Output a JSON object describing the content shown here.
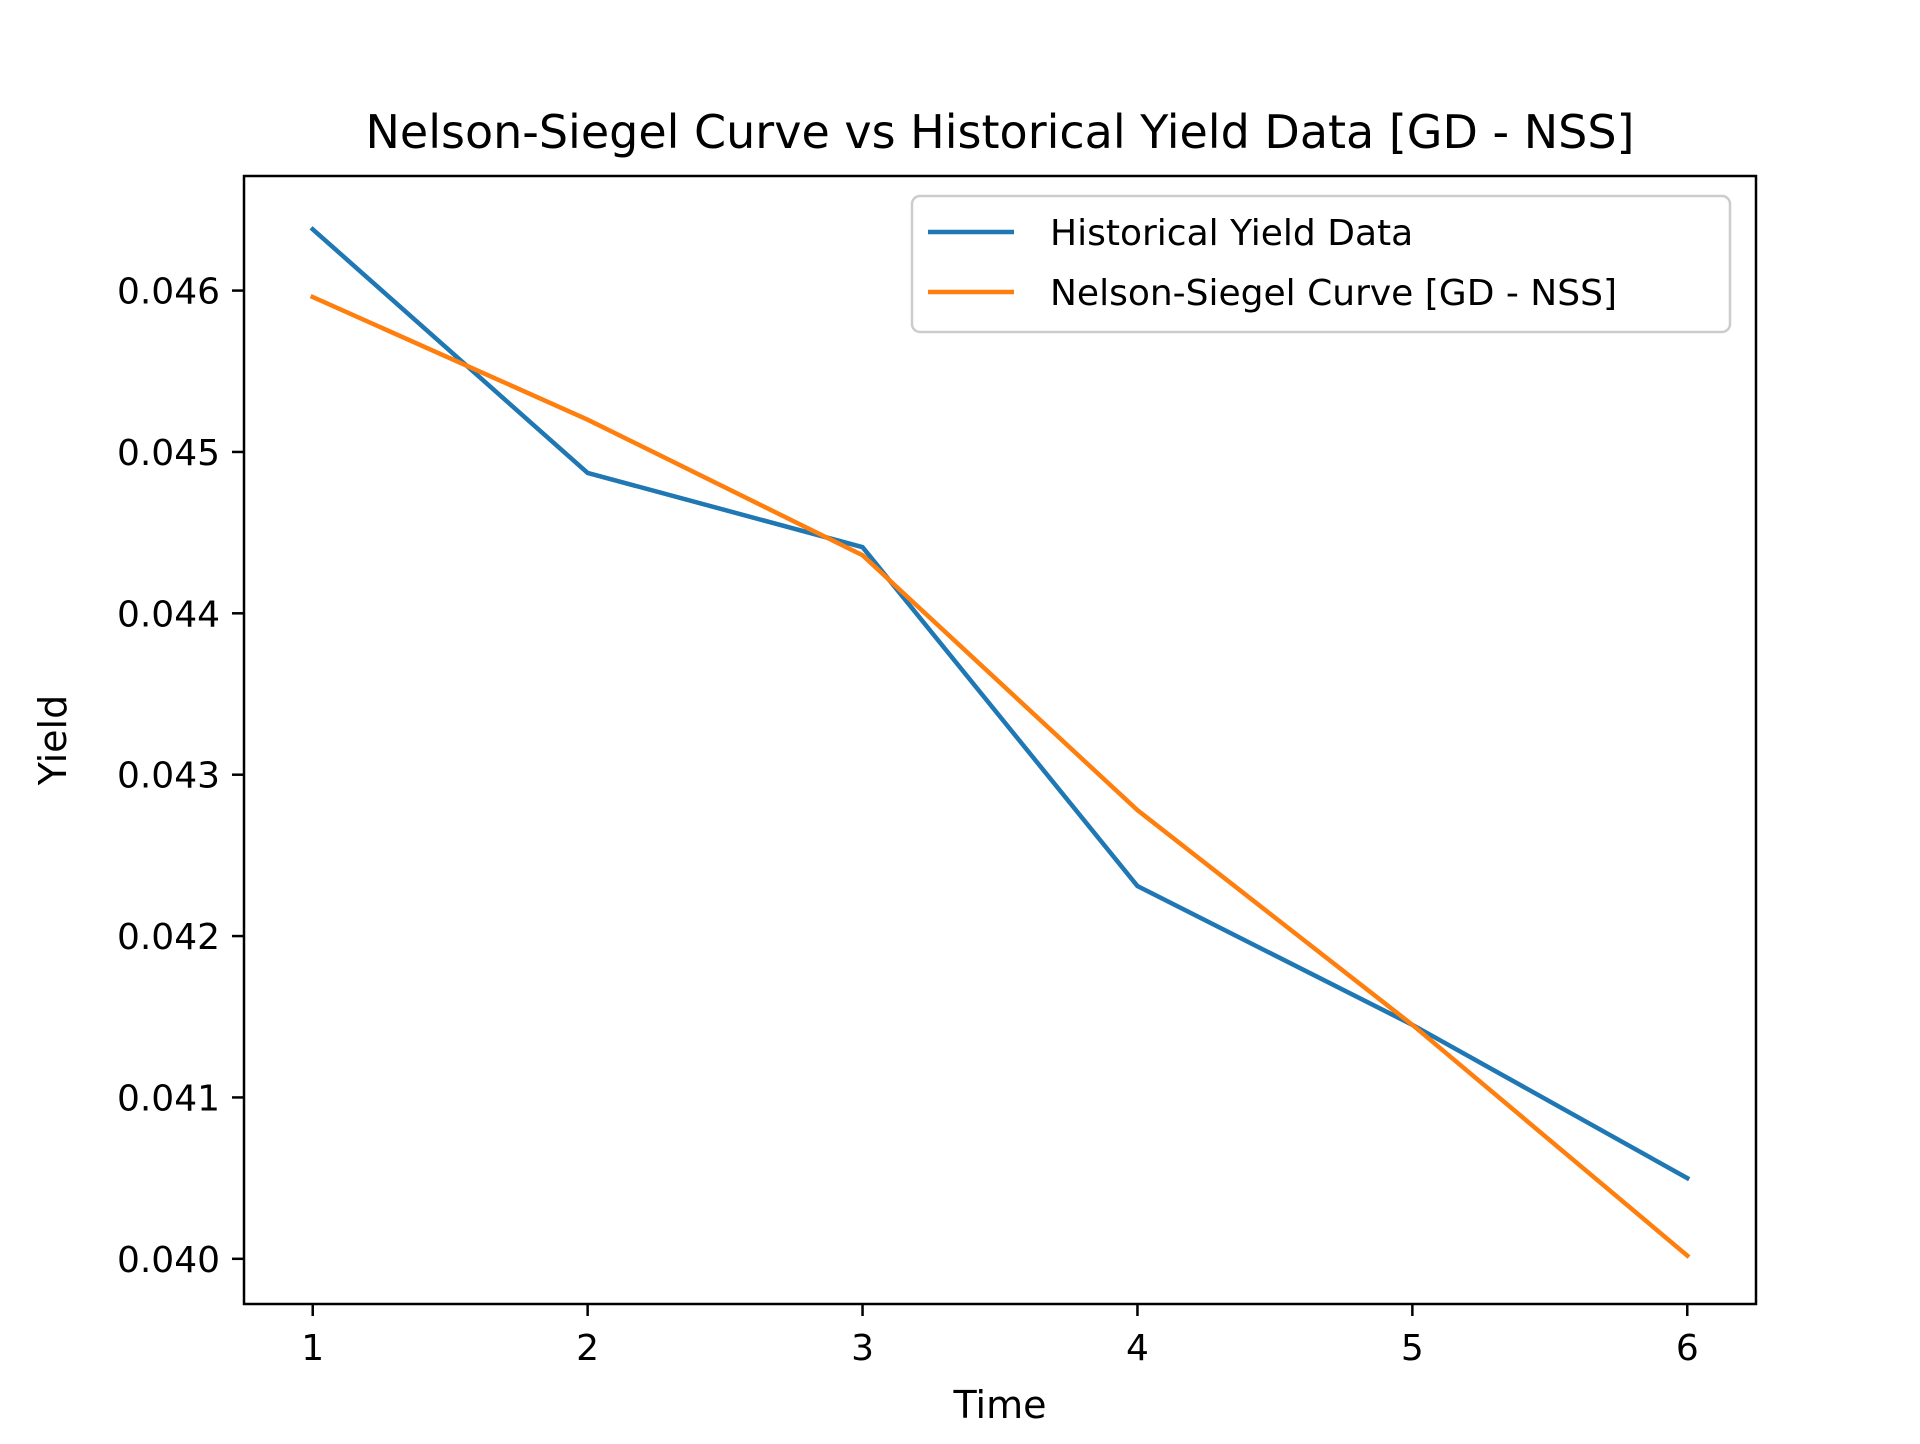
{
  "chart_data": {
    "type": "line",
    "title": "Nelson-Siegel Curve vs Historical Yield Data [GD - NSS]",
    "xlabel": "Time",
    "ylabel": "Yield",
    "xlim": [
      0.75,
      6.25
    ],
    "ylim": [
      0.03972,
      0.04671
    ],
    "xticks": [
      1,
      2,
      3,
      4,
      5,
      6
    ],
    "xtick_labels": [
      "1",
      "2",
      "3",
      "4",
      "5",
      "6"
    ],
    "yticks": [
      0.04,
      0.041,
      0.042,
      0.043,
      0.044,
      0.045,
      0.046
    ],
    "ytick_labels": [
      "0.040",
      "0.041",
      "0.042",
      "0.043",
      "0.044",
      "0.045",
      "0.046"
    ],
    "grid": false,
    "legend_position": "top-right",
    "x": [
      1,
      2,
      3,
      4,
      5,
      6
    ],
    "series": [
      {
        "name": "Historical Yield Data",
        "color": "#1f77b4",
        "values": [
          0.04638,
          0.04487,
          0.04441,
          0.04231,
          0.04145,
          0.0405
        ]
      },
      {
        "name": "Nelson-Siegel Curve [GD - NSS]",
        "color": "#ff7f0e",
        "values": [
          0.04596,
          0.0452,
          0.04436,
          0.04278,
          0.04145,
          0.04002
        ]
      }
    ]
  }
}
